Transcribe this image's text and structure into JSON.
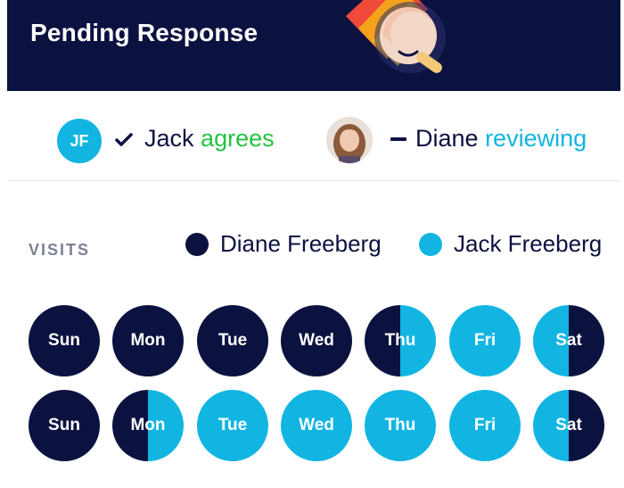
{
  "header": {
    "title": "Pending Response"
  },
  "status": {
    "jack_initials": "JF",
    "jack_name": "Jack",
    "jack_state": "agrees",
    "diane_name": "Diane",
    "diane_state": "reviewing"
  },
  "visits": {
    "label": "VISITS",
    "legend": [
      {
        "name": "Diane Freeberg",
        "color": "#0c1240"
      },
      {
        "name": "Jack Freeberg",
        "color": "#12b5e2"
      }
    ],
    "weeks": [
      {
        "days": [
          {
            "label": "Sun",
            "assignment": "diane"
          },
          {
            "label": "Mon",
            "assignment": "diane"
          },
          {
            "label": "Tue",
            "assignment": "diane"
          },
          {
            "label": "Wed",
            "assignment": "diane"
          },
          {
            "label": "Thu",
            "assignment": "split-diane-jack"
          },
          {
            "label": "Fri",
            "assignment": "jack"
          },
          {
            "label": "Sat",
            "assignment": "split-jack-diane"
          }
        ]
      },
      {
        "days": [
          {
            "label": "Sun",
            "assignment": "diane"
          },
          {
            "label": "Mon",
            "assignment": "split-diane-jack"
          },
          {
            "label": "Tue",
            "assignment": "jack"
          },
          {
            "label": "Wed",
            "assignment": "jack"
          },
          {
            "label": "Thu",
            "assignment": "jack"
          },
          {
            "label": "Fri",
            "assignment": "jack"
          },
          {
            "label": "Sat",
            "assignment": "split-jack-diane"
          }
        ]
      }
    ]
  },
  "colors": {
    "navy": "#0c1240",
    "cyan": "#12b5e2",
    "green": "#23c341"
  }
}
